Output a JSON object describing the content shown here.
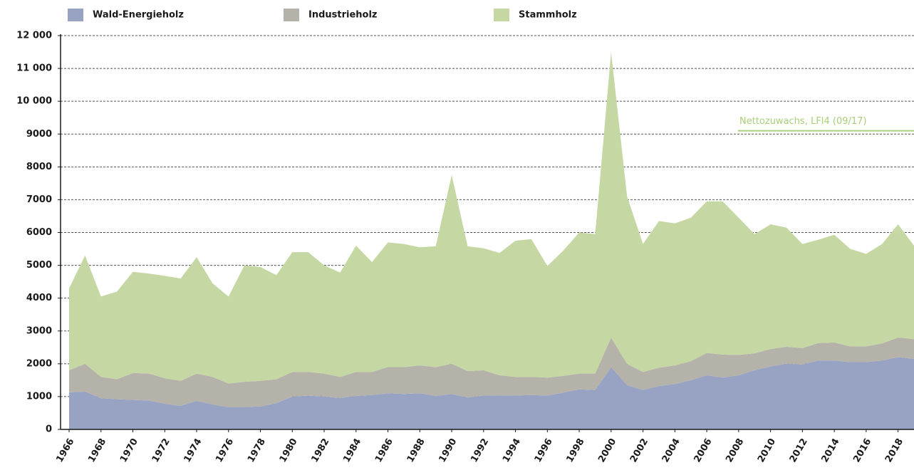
{
  "chart_data": {
    "type": "stacked_area",
    "annotation": "Nettozuwachs, LFI4 (09/17)",
    "annotation_value": 9100,
    "annotation_color": "#a9cf7a",
    "x": [
      1966,
      1967,
      1968,
      1969,
      1970,
      1971,
      1972,
      1973,
      1974,
      1975,
      1976,
      1977,
      1978,
      1979,
      1980,
      1981,
      1982,
      1983,
      1984,
      1985,
      1986,
      1987,
      1988,
      1989,
      1990,
      1991,
      1992,
      1993,
      1994,
      1995,
      1996,
      1997,
      1998,
      1999,
      2000,
      2001,
      2002,
      2003,
      2004,
      2005,
      2006,
      2007,
      2008,
      2009,
      2010,
      2011,
      2012,
      2013,
      2014,
      2015,
      2016,
      2017,
      2018,
      2019
    ],
    "series": [
      {
        "name": "Wald-Energieholz",
        "color": "#98a2c2",
        "values": [
          1130,
          1150,
          950,
          920,
          900,
          880,
          780,
          720,
          870,
          760,
          680,
          680,
          700,
          800,
          1000,
          1030,
          1000,
          960,
          1020,
          1050,
          1100,
          1080,
          1100,
          1020,
          1080,
          970,
          1030,
          1040,
          1030,
          1050,
          1030,
          1120,
          1220,
          1200,
          1900,
          1350,
          1200,
          1320,
          1380,
          1500,
          1650,
          1580,
          1650,
          1800,
          1920,
          2000,
          1980,
          2100,
          2100,
          2050,
          2050,
          2100,
          2200,
          2150
        ]
      },
      {
        "name": "Industrieholz",
        "color": "#b5b2aa",
        "values": [
          670,
          850,
          650,
          610,
          820,
          820,
          780,
          760,
          830,
          840,
          720,
          770,
          780,
          730,
          750,
          720,
          700,
          640,
          730,
          700,
          800,
          820,
          850,
          880,
          920,
          810,
          770,
          610,
          570,
          550,
          550,
          510,
          480,
          500,
          900,
          650,
          550,
          560,
          570,
          580,
          680,
          700,
          620,
          520,
          530,
          520,
          500,
          530,
          550,
          480,
          480,
          520,
          600,
          600
        ]
      },
      {
        "name": "Stammholz",
        "color": "#c5d8a4",
        "values": [
          2500,
          3300,
          2450,
          2670,
          3080,
          3050,
          3120,
          3120,
          3550,
          2850,
          2650,
          3550,
          3470,
          3170,
          3650,
          3650,
          3300,
          3180,
          3850,
          3350,
          3800,
          3750,
          3600,
          3680,
          5750,
          3800,
          3720,
          3730,
          4150,
          4200,
          3400,
          3820,
          4300,
          4250,
          8700,
          5100,
          3900,
          4470,
          4330,
          4370,
          4620,
          4670,
          4180,
          3630,
          3800,
          3630,
          3170,
          3150,
          3280,
          2970,
          2820,
          3030,
          3450,
          2850
        ]
      }
    ],
    "xlim": [
      1966,
      2019
    ],
    "xticks": [
      1966,
      1968,
      1970,
      1972,
      1974,
      1976,
      1978,
      1980,
      1982,
      1984,
      1986,
      1988,
      1990,
      1992,
      1994,
      1996,
      1998,
      2000,
      2002,
      2004,
      2006,
      2008,
      2010,
      2012,
      2014,
      2016,
      2018
    ],
    "ylim": [
      0,
      12000
    ],
    "yticks": [
      0,
      1000,
      2000,
      3000,
      4000,
      5000,
      6000,
      7000,
      8000,
      9000,
      {
        "value": 10000,
        "label": "10 000"
      },
      {
        "value": 11000,
        "label": "11 000"
      },
      {
        "value": 12000,
        "label": "12 000"
      }
    ],
    "grid": true
  }
}
